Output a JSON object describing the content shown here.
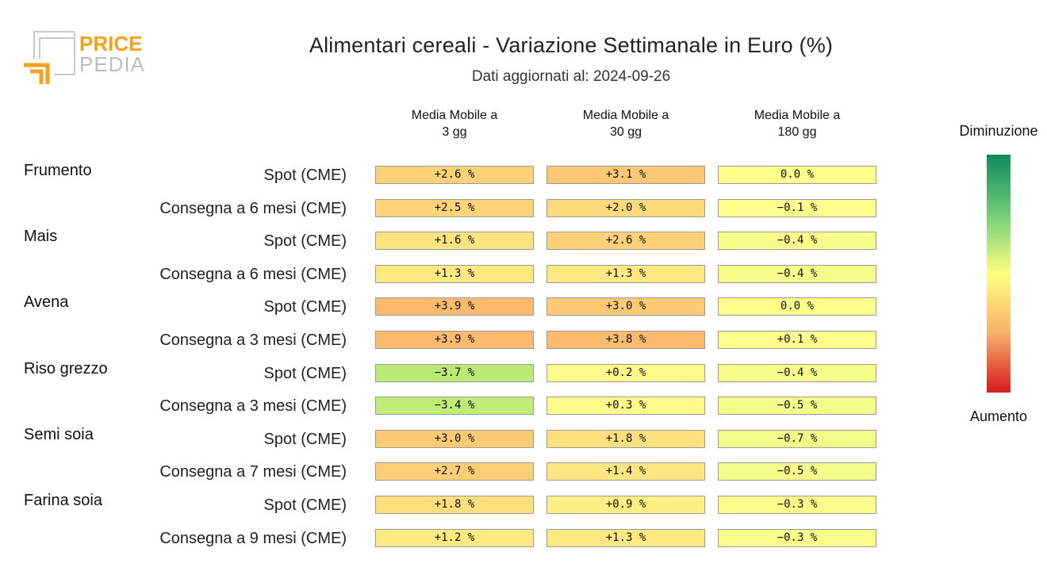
{
  "logo": {
    "line1": "PRICE",
    "line2": "PEDIA"
  },
  "title": "Alimentari cereali - Variazione Settimanale in Euro (%)",
  "subtitle": "Dati aggiornati al: 2024-09-26",
  "legend": {
    "top": "Diminuzione",
    "bottom": "Aumento"
  },
  "chart_data": {
    "type": "heatmap",
    "title": "Alimentari cereali - Variazione Settimanale in Euro (%)",
    "subtitle": "Dati aggiornati al: 2024-09-26",
    "columns": [
      {
        "line1": "Media Mobile a",
        "line2": "3 gg"
      },
      {
        "line1": "Media Mobile a",
        "line2": "30 gg"
      },
      {
        "line1": "Media Mobile a",
        "line2": "180 gg"
      }
    ],
    "groups": [
      {
        "name": "Frumento",
        "rows": [
          {
            "label": "Spot (CME)",
            "values": [
              2.6,
              3.1,
              0.0
            ]
          },
          {
            "label": "Consegna a 6 mesi (CME)",
            "values": [
              2.5,
              2.0,
              -0.1
            ]
          }
        ]
      },
      {
        "name": "Mais",
        "rows": [
          {
            "label": "Spot (CME)",
            "values": [
              1.6,
              2.6,
              -0.4
            ]
          },
          {
            "label": "Consegna a 6 mesi (CME)",
            "values": [
              1.3,
              1.3,
              -0.4
            ]
          }
        ]
      },
      {
        "name": "Avena",
        "rows": [
          {
            "label": "Spot (CME)",
            "values": [
              3.9,
              3.0,
              0.0
            ]
          },
          {
            "label": "Consegna a 3 mesi (CME)",
            "values": [
              3.9,
              3.8,
              0.1
            ]
          }
        ]
      },
      {
        "name": "Riso grezzo",
        "rows": [
          {
            "label": "Spot (CME)",
            "values": [
              -3.7,
              0.2,
              -0.4
            ]
          },
          {
            "label": "Consegna a 3 mesi (CME)",
            "values": [
              -3.4,
              0.3,
              -0.5
            ]
          }
        ]
      },
      {
        "name": "Semi soia",
        "rows": [
          {
            "label": "Spot (CME)",
            "values": [
              3.0,
              1.8,
              -0.7
            ]
          },
          {
            "label": "Consegna a 7 mesi (CME)",
            "values": [
              2.7,
              1.4,
              -0.5
            ]
          }
        ]
      },
      {
        "name": "Farina soia",
        "rows": [
          {
            "label": "Spot (CME)",
            "values": [
              1.8,
              0.9,
              -0.3
            ]
          },
          {
            "label": "Consegna a 9 mesi (CME)",
            "values": [
              1.2,
              1.3,
              -0.3
            ]
          }
        ]
      }
    ],
    "unit": "%",
    "colors": {
      "decrease": "#0f8a5f",
      "neutral": "#ffff80",
      "increase": "#d7191c"
    }
  }
}
